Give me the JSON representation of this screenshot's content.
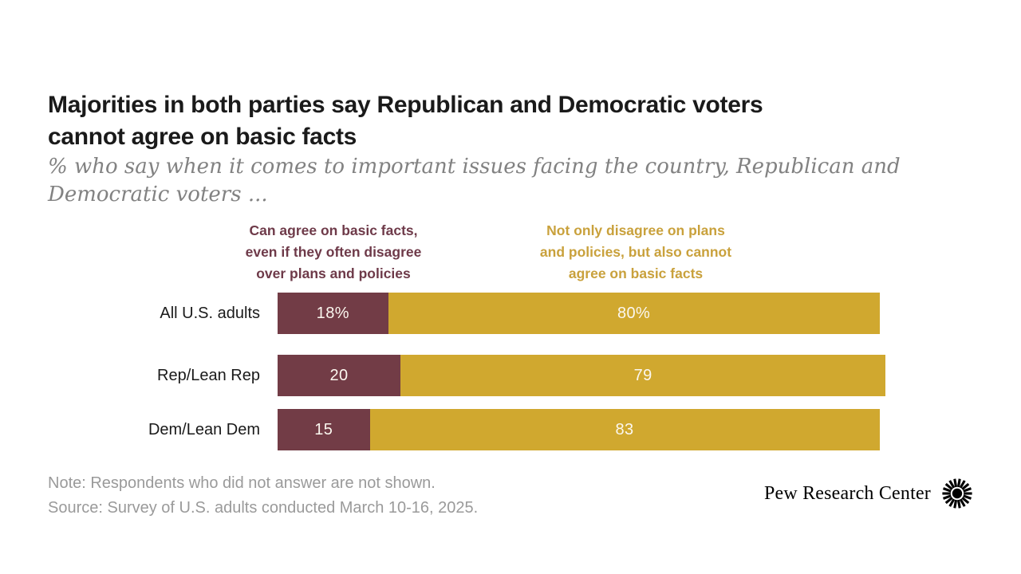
{
  "title": {
    "line1": "Majorities in both parties say Republican and Democratic voters",
    "line2": "cannot agree on basic facts"
  },
  "subtitle": {
    "line1": "% who say when it comes to important issues facing the country, Republican and",
    "line2": "Democratic voters ..."
  },
  "legend": {
    "left": {
      "color": "#6E3A49",
      "lines": [
        "Can agree on basic facts,",
        "even if they often disagree",
        "over plans and policies"
      ]
    },
    "right": {
      "color": "#C9A13C",
      "lines": [
        "Not only disagree on plans",
        "and policies, but also cannot",
        "agree on basic facts"
      ]
    }
  },
  "chart_data": {
    "type": "bar",
    "orientation": "horizontal",
    "stacked": true,
    "categories": [
      "All U.S. adults",
      "Rep/Lean Rep",
      "Dem/Lean Dem"
    ],
    "series": [
      {
        "name": "Can agree on basic facts, even if they often disagree over plans and policies",
        "color": "#723C46",
        "values": [
          18,
          20,
          15
        ],
        "value_labels": [
          "18%",
          "20",
          "15"
        ]
      },
      {
        "name": "Not only disagree on plans and policies, but also cannot agree on basic facts",
        "color": "#D0A82F",
        "values": [
          80,
          79,
          83
        ],
        "value_labels": [
          "80%",
          "79",
          "83"
        ]
      }
    ],
    "xlim": [
      0,
      100
    ],
    "unit": "percent",
    "grid": false,
    "legend_position": "top"
  },
  "note": "Note: Respondents who did not answer are not shown.",
  "source": "Source: Survey of U.S. adults conducted March 10-16, 2025.",
  "branding": {
    "name": "Pew Research Center"
  },
  "colors": {
    "background": "#FFFFFF",
    "maroon": "#723C46",
    "gold": "#D0A82F",
    "legend_maroon_text": "#6E3A49",
    "legend_gold_text": "#C9A13C",
    "title_text": "#1A1A1A",
    "subtitle_text": "#828282",
    "note_text": "#9A9A9A",
    "bar_value_text": "#FBF7EF"
  }
}
